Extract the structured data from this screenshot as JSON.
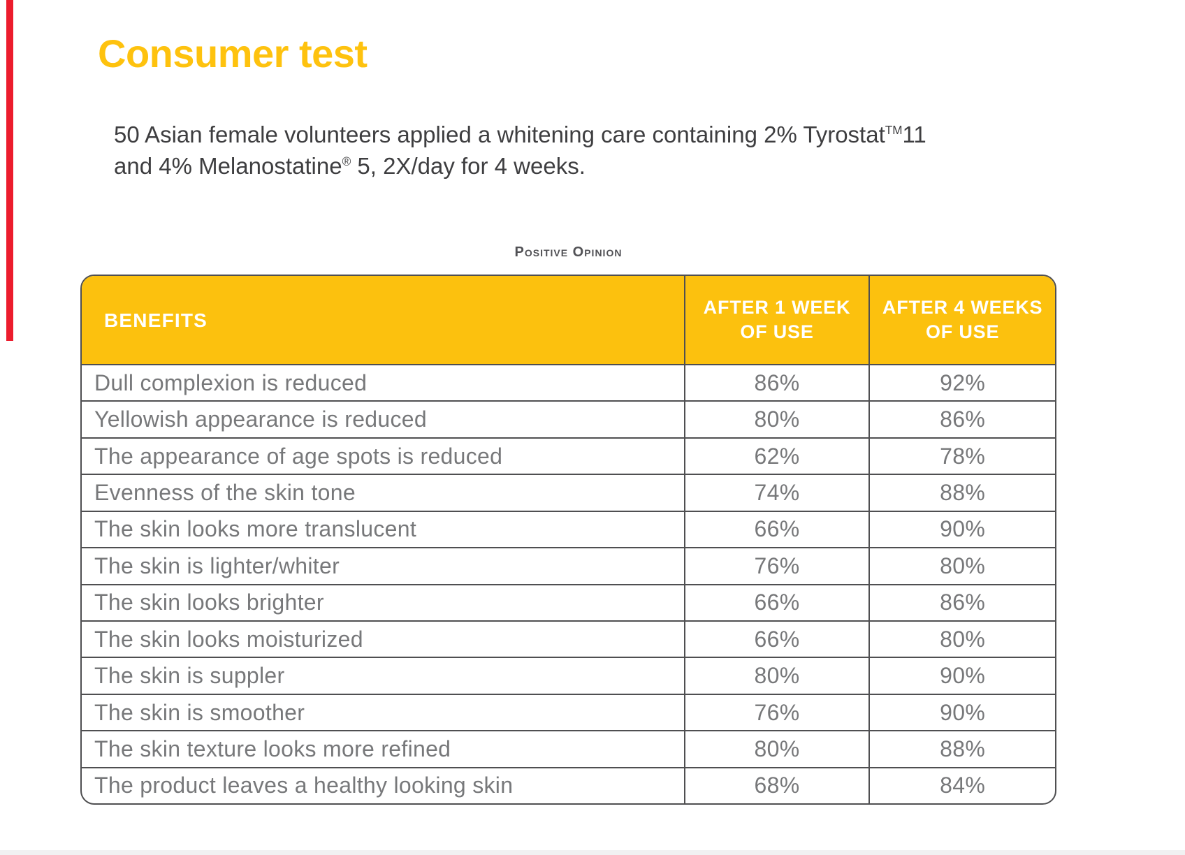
{
  "slide": {
    "title": "Consumer test",
    "intro": {
      "line1_main": "50 Asian female volunteers applied a whitening care containing 2% Tyrostat",
      "line1_sup": "TM",
      "line1_tail": "11",
      "line2_main": "and 4% Melanostatine",
      "line2_sup": "®",
      "line2_tail": " 5, 2X/day for 4 weeks."
    },
    "table": {
      "caption": "Positive Opinion",
      "columns": {
        "benefits": "BENEFITS",
        "week1_line1": "AFTER 1 WEEK",
        "week1_line2": "OF USE",
        "week4_line1": "AFTER 4 WEEKS",
        "week4_line2": "OF USE"
      },
      "rows": [
        {
          "benefit": "Dull complexion is reduced",
          "week1": "86%",
          "week4": "92%"
        },
        {
          "benefit": "Yellowish appearance is reduced",
          "week1": "80%",
          "week4": "86%"
        },
        {
          "benefit": "The appearance of age spots is reduced",
          "week1": "62%",
          "week4": "78%"
        },
        {
          "benefit": "Evenness of the skin tone",
          "week1": "74%",
          "week4": "88%"
        },
        {
          "benefit": "The skin looks more translucent",
          "week1": "66%",
          "week4": "90%"
        },
        {
          "benefit": "The skin is lighter/whiter",
          "week1": "76%",
          "week4": "80%"
        },
        {
          "benefit": "The skin looks brighter",
          "week1": "66%",
          "week4": "86%"
        },
        {
          "benefit": "The skin looks moisturized",
          "week1": "66%",
          "week4": "80%"
        },
        {
          "benefit": "The skin is suppler",
          "week1": "80%",
          "week4": "90%"
        },
        {
          "benefit": "The skin is smoother",
          "week1": "76%",
          "week4": "90%"
        },
        {
          "benefit": "The skin texture looks more refined",
          "week1": "80%",
          "week4": "88%"
        },
        {
          "benefit": "The product leaves a healthy looking skin",
          "week1": "68%",
          "week4": "84%"
        }
      ]
    },
    "colors": {
      "title_yellow": "#FEC20E",
      "header_yellow": "#FCC10E",
      "table_border": "#4F4F51",
      "table_text": "#77787A",
      "intro_text": "#3E3E40",
      "red_accent": "#EC1C2D",
      "bottom_band": "#F1F1F2"
    }
  }
}
